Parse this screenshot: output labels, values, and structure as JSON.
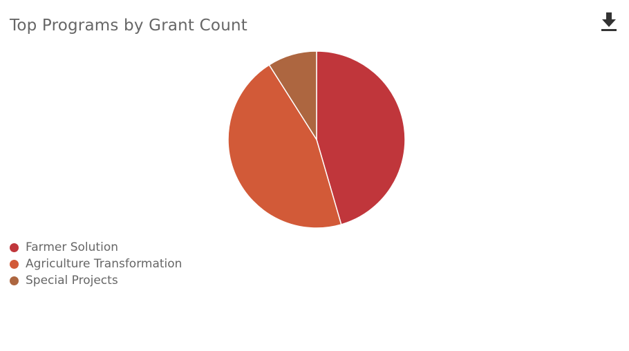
{
  "header": {
    "title": "Top Programs by Grant Count"
  },
  "toolbar": {
    "download_icon": "download-icon"
  },
  "colors": {
    "text": "#666666",
    "icon": "#333333",
    "slice_border": "#ffffff"
  },
  "chart_data": {
    "type": "pie",
    "title": "Top Programs by Grant Count",
    "legend_position": "bottom-left",
    "start_angle_deg": 0,
    "direction": "clockwise",
    "slices": [
      {
        "label": "Farmer Solution",
        "value": 45.5,
        "color": "#c0363b"
      },
      {
        "label": "Agriculture Transformation",
        "value": 45.5,
        "color": "#d25a38"
      },
      {
        "label": "Special Projects",
        "value": 9.0,
        "color": "#ad6640"
      }
    ]
  }
}
